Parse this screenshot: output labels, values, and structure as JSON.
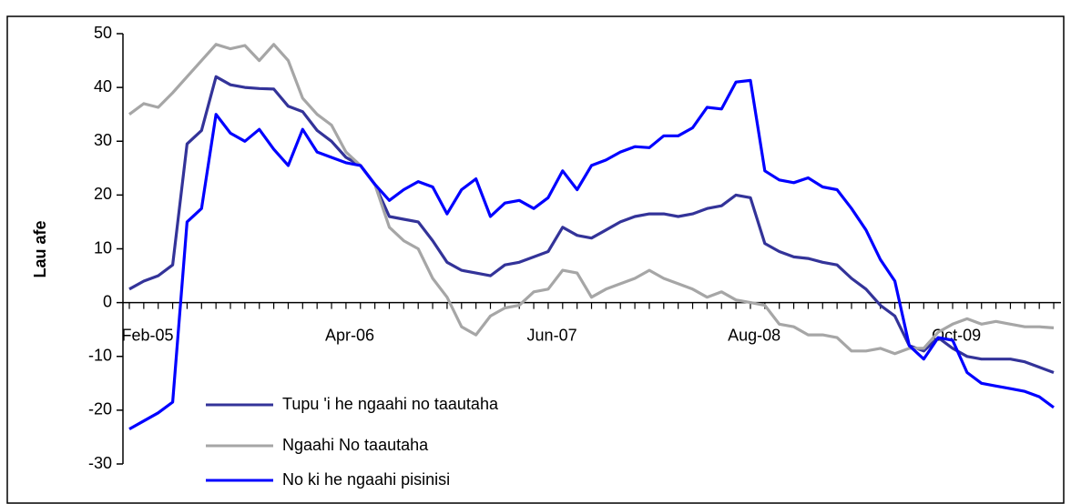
{
  "chart_data": {
    "type": "line",
    "y_label": "Lau afe",
    "categories": [
      "Feb-05",
      null,
      null,
      null,
      null,
      null,
      null,
      null,
      null,
      null,
      null,
      null,
      null,
      null,
      "Apr-06",
      null,
      null,
      null,
      null,
      null,
      null,
      null,
      null,
      null,
      null,
      null,
      null,
      null,
      "Jun-07",
      null,
      null,
      null,
      null,
      null,
      null,
      null,
      null,
      null,
      null,
      null,
      null,
      null,
      "Aug-08",
      null,
      null,
      null,
      null,
      null,
      null,
      null,
      null,
      null,
      null,
      null,
      null,
      null,
      "Oct-09",
      null,
      null,
      null,
      null,
      null,
      null,
      null,
      null
    ],
    "series": [
      {
        "name": "Tupu 'i he ngaahi no taautaha",
        "color": "#333399",
        "values": [
          2.5,
          4,
          5,
          7,
          29.5,
          32,
          42,
          40.5,
          40,
          39.8,
          39.7,
          36.5,
          35.5,
          32,
          30,
          27,
          25.5,
          22,
          16,
          15.5,
          15,
          11.5,
          7.5,
          6,
          5.5,
          5,
          7,
          7.5,
          8.5,
          9.5,
          14,
          12.5,
          12,
          13.5,
          15,
          16,
          16.5,
          16.5,
          16,
          16.5,
          17.5,
          18,
          20,
          19.5,
          11,
          9.5,
          8.5,
          8.2,
          7.5,
          7,
          4.5,
          2.5,
          -0.5,
          -2.5,
          -8,
          -9,
          -6.5,
          -8.5,
          -10,
          -10.5,
          -10.5,
          -10.5,
          -11,
          -12,
          -13
        ]
      },
      {
        "name": "Ngaahi No taautaha",
        "color": "#a6a6a6",
        "values": [
          35,
          37,
          36.3,
          39,
          42,
          45,
          48,
          47.2,
          47.8,
          45,
          48,
          45,
          38,
          35,
          33,
          28,
          25.5,
          22,
          14,
          11.5,
          10,
          4.5,
          1,
          -4.5,
          -6,
          -2.5,
          -1,
          -0.5,
          2,
          2.5,
          6,
          5.5,
          1,
          2.5,
          3.5,
          4.5,
          6,
          4.5,
          3.5,
          2.5,
          1,
          2,
          0.5,
          0,
          -0.5,
          -4,
          -4.5,
          -6,
          -6,
          -6.5,
          -9,
          -9,
          -8.5,
          -9.5,
          -8.5,
          -8.5,
          -5.5,
          -4,
          -3,
          -4,
          -3.5,
          -4,
          -4.5,
          -4.5,
          -4.7
        ]
      },
      {
        "name": "No ki he ngaahi pisinisi",
        "color": "#0000ff",
        "values": [
          -23.5,
          -22,
          -20.5,
          -18.5,
          15,
          17.5,
          35,
          31.5,
          30,
          32.2,
          28.5,
          25.5,
          32.2,
          28,
          27,
          26,
          25.5,
          22,
          19,
          21,
          22.5,
          21.5,
          16.5,
          21,
          23,
          16,
          18.5,
          19,
          17.5,
          19.5,
          24.5,
          21,
          25.5,
          26.5,
          28,
          29,
          28.8,
          31,
          31,
          32.5,
          36.3,
          36,
          41,
          41.3,
          24.5,
          22.8,
          22.3,
          23.2,
          21.5,
          21,
          17.5,
          13.5,
          8,
          4,
          -8,
          -10.5,
          -6.5,
          -7,
          -13,
          -15,
          -15.5,
          -16,
          -16.5,
          -17.5,
          -19.5
        ]
      }
    ],
    "ylim": [
      -30,
      50
    ],
    "yticks": [
      -30,
      -20,
      -10,
      0,
      10,
      20,
      30,
      40,
      50
    ]
  }
}
